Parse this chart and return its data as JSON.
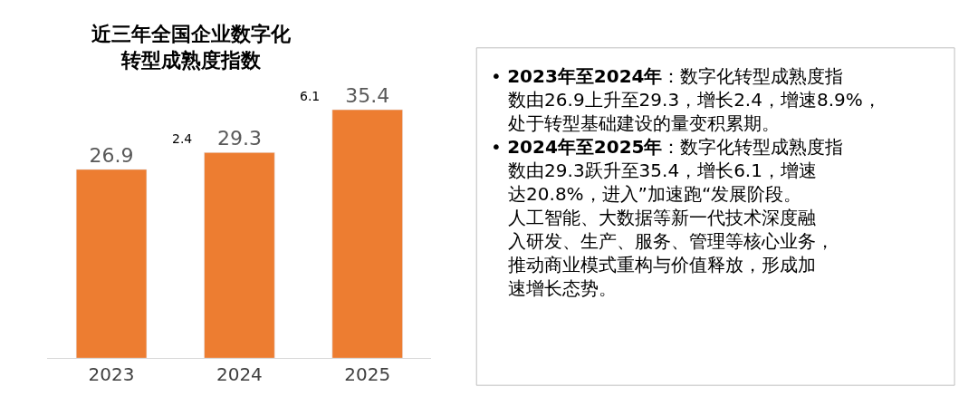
{
  "chart_data": [
    {
      "type": "bar",
      "title": "近三年全国企业数字化转型成熟度指数",
      "categories": [
        "2023",
        "2024",
        "2025"
      ],
      "values": [
        26.9,
        29.3,
        35.4
      ],
      "color": "#ed7d31",
      "data_labels": true,
      "tick_labels": "x",
      "annotations": [
        "2.4",
        "6.1"
      ]
    },
    {
      "type": "other",
      "annotations": [
        "•",
        "2023年至2024年",
        "：数字化转型成熟度指数由26.9上升至29.3，增长2.4，增速8.9%，处于转型基础建设的量变积累期。",
        "•",
        "2024年至2025年",
        "：数字化转型成熟度指数由29.3跃升至35.4，增长6.1，增速达20.8%，进入”加速跑“发展阶段。人工智能、大数据等新一代技术深度融入研发、生产、服务、管理等核心业务，推动商业模式重构与价值释放，形成加速增长态势。"
      ]
    }
  ]
}
